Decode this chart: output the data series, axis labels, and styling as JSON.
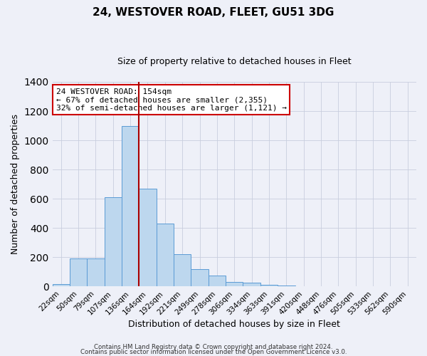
{
  "title": "24, WESTOVER ROAD, FLEET, GU51 3DG",
  "subtitle": "Size of property relative to detached houses in Fleet",
  "xlabel": "Distribution of detached houses by size in Fleet",
  "ylabel": "Number of detached properties",
  "bin_labels": [
    "22sqm",
    "50sqm",
    "79sqm",
    "107sqm",
    "136sqm",
    "164sqm",
    "192sqm",
    "221sqm",
    "249sqm",
    "278sqm",
    "306sqm",
    "334sqm",
    "363sqm",
    "391sqm",
    "420sqm",
    "448sqm",
    "476sqm",
    "505sqm",
    "533sqm",
    "562sqm",
    "590sqm"
  ],
  "bin_values": [
    15,
    190,
    190,
    610,
    1100,
    670,
    430,
    220,
    120,
    75,
    30,
    25,
    10,
    5,
    0,
    0,
    0,
    0,
    0,
    0,
    0
  ],
  "bar_color": "#bdd7ee",
  "bar_edge_color": "#5b9bd5",
  "vline_color": "#aa0000",
  "annotation_text": "24 WESTOVER ROAD: 154sqm\n← 67% of detached houses are smaller (2,355)\n32% of semi-detached houses are larger (1,121) →",
  "annotation_box_color": "white",
  "annotation_box_edge_color": "#cc0000",
  "ylim": [
    0,
    1400
  ],
  "yticks": [
    0,
    200,
    400,
    600,
    800,
    1000,
    1200,
    1400
  ],
  "footer1": "Contains HM Land Registry data © Crown copyright and database right 2024.",
  "footer2": "Contains public sector information licensed under the Open Government Licence v3.0.",
  "background_color": "#eef0f8",
  "grid_color": "#c8cede",
  "title_fontsize": 11,
  "subtitle_fontsize": 9,
  "vline_x_index": 4.5
}
